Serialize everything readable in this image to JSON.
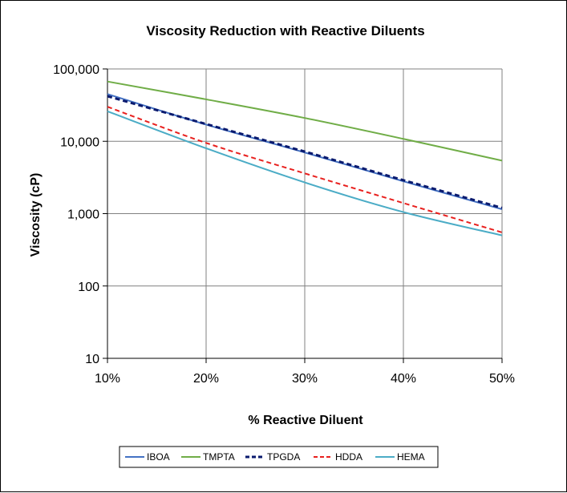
{
  "chart_data": {
    "type": "line",
    "title": "Viscosity Reduction with Reactive Diluents",
    "xlabel": "% Reactive Diluent",
    "ylabel": "Viscosity  (cP)",
    "x": [
      10,
      20,
      30,
      40,
      50
    ],
    "x_tick_labels": [
      "10%",
      "20%",
      "30%",
      "40%",
      "50%"
    ],
    "xlim": [
      10,
      50
    ],
    "y_scale": "log",
    "ylim": [
      10,
      100000
    ],
    "y_ticks": [
      10,
      100,
      1000,
      10000,
      100000
    ],
    "y_tick_labels": [
      "10",
      "100",
      "1,000",
      "10,000",
      "100,000"
    ],
    "grid": true,
    "legend_position": "bottom",
    "series": [
      {
        "name": "IBOA",
        "color": "#4472C4",
        "dash": "solid",
        "values": [
          45000,
          17000,
          7000,
          2800,
          1150
        ]
      },
      {
        "name": "TMPTA",
        "color": "#70AD47",
        "dash": "solid",
        "values": [
          67000,
          38000,
          21000,
          10800,
          5400
        ]
      },
      {
        "name": "TPGDA",
        "color": "#0A1A6E",
        "dash": "dash",
        "values": [
          42000,
          17300,
          7200,
          2900,
          1200
        ]
      },
      {
        "name": "HDDA",
        "color": "#E8201E",
        "dash": "dash",
        "values": [
          30000,
          9500,
          3600,
          1400,
          550
        ]
      },
      {
        "name": "HEMA",
        "color": "#4BACC6",
        "dash": "solid",
        "values": [
          26000,
          8000,
          2700,
          1050,
          500
        ]
      }
    ]
  }
}
